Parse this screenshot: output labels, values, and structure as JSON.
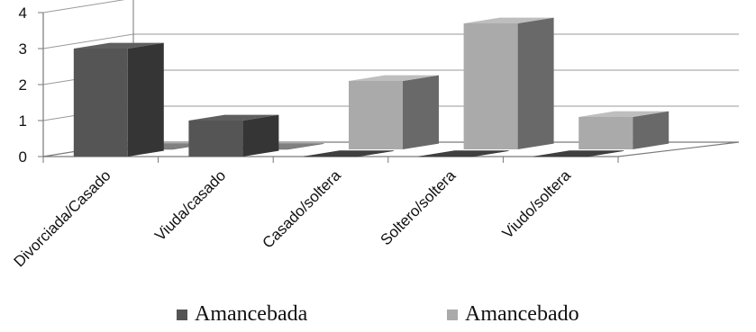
{
  "chart_data": {
    "type": "bar",
    "categories": [
      "Divorciada/Casado",
      "Viuda/casado",
      "Casado/soltera",
      "Soltero/soltera",
      "Viudo/soltera"
    ],
    "series": [
      {
        "name": "Amancebada",
        "values": [
          3,
          1,
          0,
          0,
          0
        ]
      },
      {
        "name": "Amancebado",
        "values": [
          0,
          0,
          1.9,
          3.5,
          0.9
        ]
      }
    ],
    "ylim": [
      0,
      4
    ],
    "yticks": [
      0,
      1,
      2,
      3,
      4
    ],
    "grid": true,
    "legend": "bottom",
    "colors": [
      "#555555",
      "#aaaaaa"
    ]
  }
}
